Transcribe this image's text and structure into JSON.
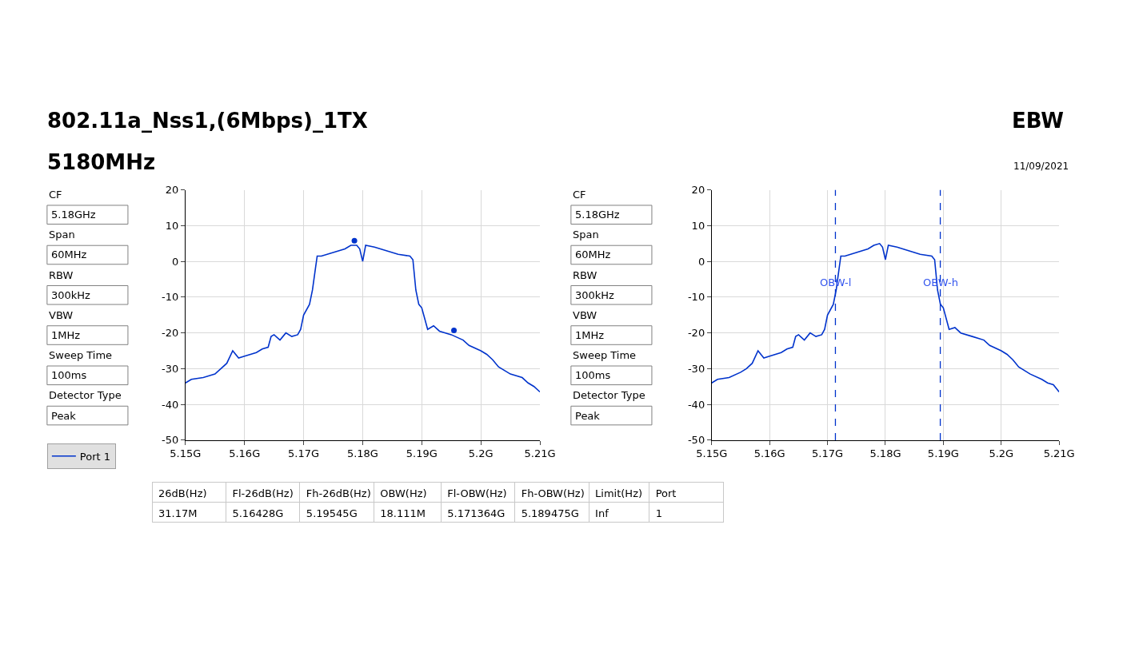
{
  "chart_data": [
    {
      "type": "other",
      "title": "802.11a_Nss1,(6Mbps)_1TX",
      "subtitle": "5180MHz",
      "annotations": [
        "EBW",
        "11/09/2021"
      ]
    },
    {
      "type": "other",
      "annotations": [
        "CF",
        "5.18GHz",
        "Span",
        "60MHz",
        "RBW",
        "300kHz",
        "VBW",
        "1MHz",
        "Sweep Time",
        "100ms",
        "Detector Type",
        "Peak"
      ]
    },
    {
      "type": "line",
      "xlim": [
        5.15,
        5.21
      ],
      "ylim": [
        -50,
        20
      ],
      "xticks": [
        {
          "value": 5.15,
          "label": "5.15G"
        },
        {
          "value": 5.16,
          "label": "5.16G"
        },
        {
          "value": 5.17,
          "label": "5.17G"
        },
        {
          "value": 5.18,
          "label": "5.18G"
        },
        {
          "value": 5.19,
          "label": "5.19G"
        },
        {
          "value": 5.2,
          "label": "5.2G"
        },
        {
          "value": 5.21,
          "label": "5.21G"
        }
      ],
      "yticks": [
        -50,
        -40,
        -30,
        -20,
        -10,
        0,
        10,
        20
      ],
      "grid": true,
      "legend": "bottom left",
      "marker": "none",
      "line_style": "solid",
      "x": [
        5.15,
        5.151,
        5.153,
        5.155,
        5.156,
        5.157,
        5.158,
        5.159,
        5.16,
        5.162,
        5.163,
        5.164,
        5.1645,
        5.165,
        5.166,
        5.167,
        5.168,
        5.169,
        5.1695,
        5.17,
        5.171,
        5.1715,
        5.172,
        5.1723,
        5.173,
        5.175,
        5.177,
        5.178,
        5.179,
        5.1795,
        5.18,
        5.1805,
        5.182,
        5.184,
        5.186,
        5.188,
        5.1885,
        5.189,
        5.1895,
        5.19,
        5.1905,
        5.191,
        5.192,
        5.193,
        5.195,
        5.197,
        5.198,
        5.2,
        5.201,
        5.202,
        5.203,
        5.205,
        5.207,
        5.208,
        5.209,
        5.21
      ],
      "series": [
        {
          "name": "Port 1",
          "color": "#0033cc",
          "values": [
            -34,
            -33,
            -32.5,
            -31.5,
            -30,
            -28.5,
            -25,
            -27,
            -26.5,
            -25.5,
            -24.5,
            -24,
            -21,
            -20.5,
            -22,
            -20,
            -21,
            -20.5,
            -19,
            -15,
            -12,
            -8,
            -2,
            1.5,
            1.5,
            2.5,
            3.5,
            4.5,
            4.5,
            3.5,
            0,
            4.5,
            4,
            3,
            2,
            1.5,
            0.5,
            -8,
            -12,
            -13,
            -16,
            -19,
            -18,
            -19.5,
            -20.5,
            -22,
            -23.5,
            -25,
            -26,
            -27.5,
            -29.5,
            -31.5,
            -32.5,
            -34,
            -35,
            -36.5
          ]
        },
        {
          "type": "scatter",
          "marker": "circle",
          "color": "#0033cc",
          "x": [
            5.1786,
            5.19545
          ],
          "values": [
            5.8,
            -19.3
          ]
        }
      ]
    },
    {
      "type": "other",
      "annotations": [
        "CF",
        "5.18GHz",
        "Span",
        "60MHz",
        "RBW",
        "300kHz",
        "VBW",
        "1MHz",
        "Sweep Time",
        "100ms",
        "Detector Type",
        "Peak"
      ]
    },
    {
      "type": "line",
      "xlim": [
        5.15,
        5.21
      ],
      "ylim": [
        -50,
        20
      ],
      "xticks": [
        {
          "value": 5.15,
          "label": "5.15G"
        },
        {
          "value": 5.16,
          "label": "5.16G"
        },
        {
          "value": 5.17,
          "label": "5.17G"
        },
        {
          "value": 5.18,
          "label": "5.18G"
        },
        {
          "value": 5.19,
          "label": "5.19G"
        },
        {
          "value": 5.2,
          "label": "5.2G"
        },
        {
          "value": 5.21,
          "label": "5.21G"
        }
      ],
      "yticks": [
        -50,
        -40,
        -30,
        -20,
        -10,
        0,
        10,
        20
      ],
      "grid": true,
      "marker": "none",
      "line_style": "solid",
      "x": [
        5.15,
        5.151,
        5.153,
        5.155,
        5.156,
        5.157,
        5.158,
        5.159,
        5.16,
        5.162,
        5.163,
        5.164,
        5.1645,
        5.165,
        5.166,
        5.167,
        5.168,
        5.169,
        5.1695,
        5.17,
        5.171,
        5.1715,
        5.172,
        5.1723,
        5.173,
        5.175,
        5.177,
        5.178,
        5.179,
        5.1795,
        5.18,
        5.1805,
        5.182,
        5.184,
        5.186,
        5.188,
        5.1885,
        5.189,
        5.1895,
        5.19,
        5.1905,
        5.191,
        5.192,
        5.193,
        5.195,
        5.197,
        5.198,
        5.2,
        5.201,
        5.202,
        5.203,
        5.205,
        5.207,
        5.208,
        5.209,
        5.21
      ],
      "series": [
        {
          "color": "#0033cc",
          "values": [
            -34,
            -33,
            -32.5,
            -31,
            -30,
            -28.5,
            -25,
            -27,
            -26.5,
            -25.5,
            -24.5,
            -24,
            -21,
            -20.5,
            -22,
            -20,
            -21,
            -20.5,
            -19,
            -15,
            -12,
            -8,
            -2,
            1.5,
            1.5,
            2.5,
            3.5,
            4.5,
            5,
            4,
            0.5,
            4.5,
            4,
            3,
            2,
            1.5,
            0.5,
            -8,
            -12,
            -13,
            -16,
            -19,
            -18.5,
            -20,
            -21,
            -22,
            -23.5,
            -25,
            -26,
            -27.5,
            -29.5,
            -31.5,
            -33,
            -34,
            -34.5,
            -36.5
          ]
        }
      ],
      "ref_lines": [
        {
          "axis": "x",
          "value": 5.171364,
          "label": "OBW-l",
          "color": "#0033cc",
          "line_style": "dashed"
        },
        {
          "axis": "x",
          "value": 5.189475,
          "label": "OBW-h",
          "color": "#0033cc",
          "line_style": "dashed"
        }
      ]
    },
    {
      "type": "other",
      "annotations": [
        "26dB(Hz)",
        "Fl-26dB(Hz)",
        "Fh-26dB(Hz)",
        "OBW(Hz)",
        "Fl-OBW(Hz)",
        "Fh-OBW(Hz)",
        "Limit(Hz)",
        "Port",
        "31.17M",
        "5.16428G",
        "5.19545G",
        "18.111M",
        "5.171364G",
        "5.189475G",
        "Inf",
        "1"
      ]
    }
  ]
}
